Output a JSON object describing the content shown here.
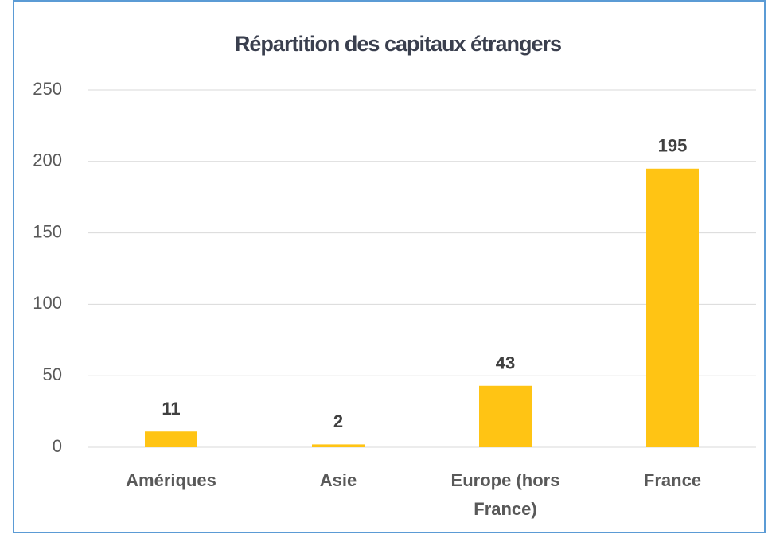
{
  "chart_data": {
    "type": "bar",
    "title": "Répartition des capitaux étrangers",
    "categories": [
      "Amériques",
      "Asie",
      "Europe (hors France)",
      "France"
    ],
    "values": [
      11,
      2,
      43,
      195
    ],
    "color": "#FFC414",
    "ylim": [
      0,
      250
    ],
    "yticks": [
      0,
      50,
      100,
      150,
      200,
      250
    ],
    "grid": true
  }
}
